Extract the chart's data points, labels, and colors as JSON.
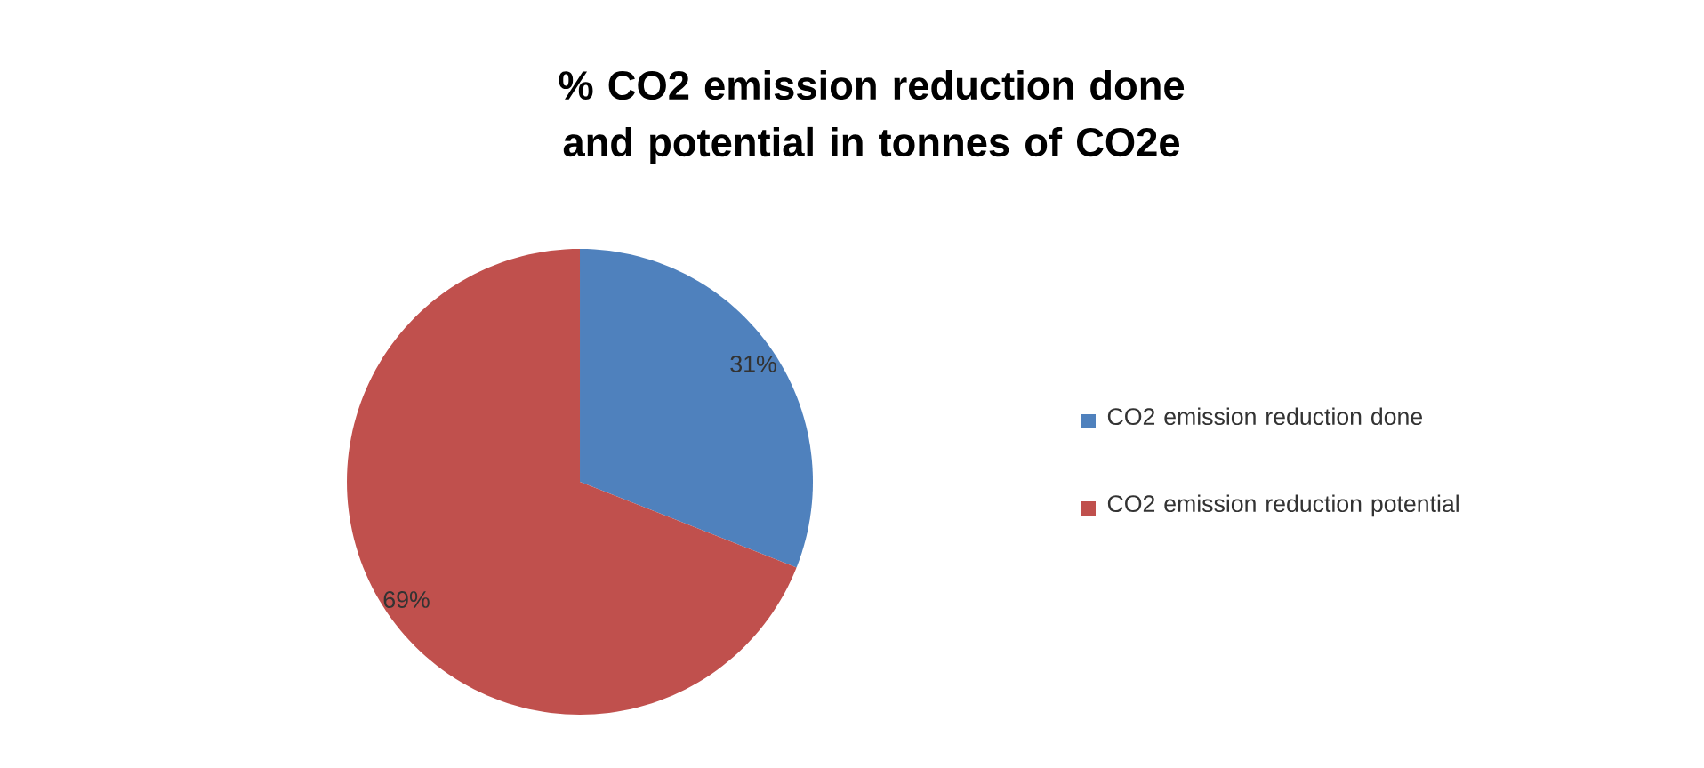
{
  "chart_data": {
    "type": "pie",
    "title": "% CO2 emission reduction done and potential in tonnes of CO2e",
    "categories": [
      "CO2 emission reduction done",
      "CO2 emission reduction potential"
    ],
    "values": [
      31,
      69
    ],
    "colors": [
      "#4f81bd",
      "#c0504d"
    ],
    "value_labels": [
      "31%",
      "69%"
    ],
    "legend": "right"
  }
}
